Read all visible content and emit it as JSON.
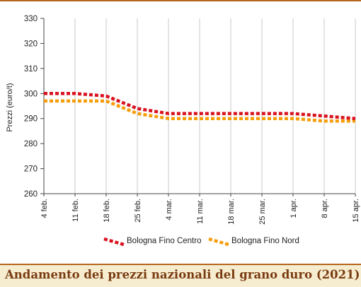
{
  "chart_data": {
    "type": "line",
    "ylabel": "Prezzi (euro/t)",
    "ylim": [
      260,
      330
    ],
    "yticks": [
      260,
      270,
      280,
      290,
      300,
      310,
      320,
      330
    ],
    "categories": [
      "4 feb.",
      "11 feb.",
      "18 feb.",
      "25 feb.",
      "4 mar.",
      "11 mar.",
      "18 mar.",
      "25 mar.",
      "1 apr.",
      "8 apr.",
      "15 apr."
    ],
    "grid": "vertical",
    "legend": "bottom",
    "series": [
      {
        "name": "Bologna Fino Centro",
        "color": "#d9121f",
        "values": [
          300,
          300,
          299,
          294,
          292,
          292,
          292,
          292,
          292,
          291,
          290
        ]
      },
      {
        "name": "Bologna Fino Nord",
        "color": "#f59d0b",
        "values": [
          297,
          297,
          297,
          292,
          290,
          290,
          290,
          290,
          290,
          289,
          289
        ]
      }
    ]
  },
  "caption": "Andamento dei prezzi nazionali del grano duro (2021)"
}
